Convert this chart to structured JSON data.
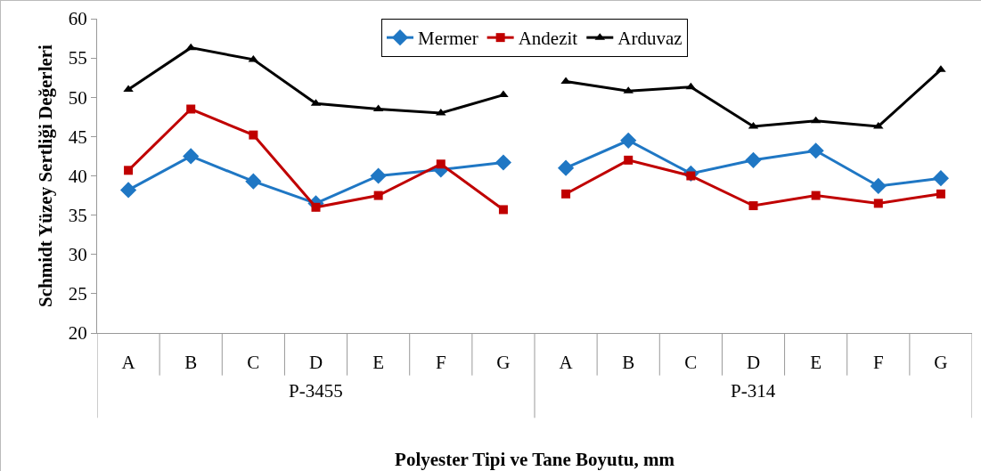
{
  "chart_data": {
    "type": "line",
    "xlabel": "Polyester Tipi ve Tane Boyutu, mm",
    "ylabel": "Schmidt Yüzey Sertliği Değerleri",
    "categories": [
      "A",
      "B",
      "C",
      "D",
      "E",
      "F",
      "G",
      "A",
      "B",
      "C",
      "D",
      "E",
      "F",
      "G"
    ],
    "annotations": [
      "P-3455",
      "P-314"
    ],
    "series": [
      {
        "name": "Mermer",
        "color": "#1f77c4",
        "marker": "diamond",
        "values": [
          38.2,
          42.5,
          39.3,
          36.5,
          40.0,
          40.8,
          41.7,
          41.0,
          44.5,
          40.3,
          42.0,
          43.2,
          38.7,
          39.7
        ]
      },
      {
        "name": "Andezit",
        "color": "#c00000",
        "marker": "square",
        "values": [
          40.7,
          48.5,
          45.2,
          36.0,
          37.5,
          41.5,
          35.7,
          37.7,
          42.0,
          40.0,
          36.2,
          37.5,
          36.5,
          37.7
        ]
      },
      {
        "name": "Arduvaz",
        "color": "#000000",
        "marker": "triangle",
        "values": [
          51.0,
          56.3,
          54.8,
          49.2,
          48.5,
          48.0,
          50.3,
          52.0,
          50.8,
          51.3,
          46.3,
          47.0,
          46.3,
          53.5
        ]
      }
    ],
    "ylim": [
      20,
      60
    ],
    "yticks": [
      20,
      25,
      30,
      35,
      40,
      45,
      50,
      55,
      60
    ],
    "grid": false,
    "legend": "top",
    "line_style": "solid"
  }
}
